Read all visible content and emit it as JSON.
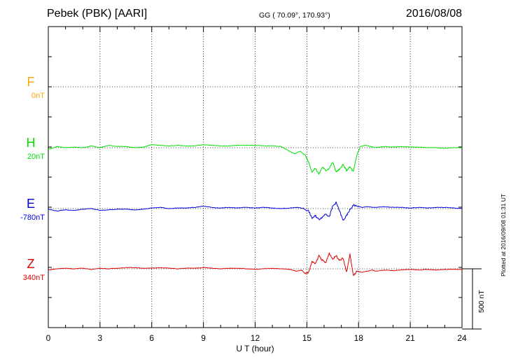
{
  "header": {
    "station": "Pebek (PBK)  [AARI]",
    "coords": "GG ( 70.09°, 170.93°)",
    "date": "2016/08/08"
  },
  "side_note": "Plotted at 2016/09/08 01:31 UT",
  "scale_bar_label": "500 nT",
  "chart_data": {
    "type": "line",
    "xlabel": "U T (hour)",
    "xlim": [
      0,
      24
    ],
    "xticks": [
      0,
      3,
      6,
      9,
      12,
      15,
      18,
      21,
      24
    ],
    "grid": true,
    "scale_bar_nT": 500,
    "components": [
      {
        "name": "F",
        "baseline": "0nT",
        "color": "#ffa500",
        "level": 0,
        "values": []
      },
      {
        "name": "H",
        "baseline": "20nT",
        "color": "#00e000",
        "level": 1,
        "x": [
          0,
          0.5,
          1,
          1.5,
          2,
          2.5,
          3,
          3.5,
          4,
          4.5,
          5,
          5.5,
          6,
          6.5,
          7,
          7.5,
          8,
          8.5,
          9,
          9.5,
          10,
          10.5,
          11,
          11.5,
          12,
          12.5,
          13,
          13.5,
          14,
          14.3,
          14.6,
          14.9,
          15.1,
          15.3,
          15.5,
          15.7,
          15.9,
          16.1,
          16.3,
          16.5,
          16.7,
          16.9,
          17.1,
          17.3,
          17.5,
          17.7,
          17.9,
          18.1,
          18.4,
          18.7,
          19,
          19.5,
          20,
          20.5,
          21,
          21.5,
          22,
          22.5,
          23,
          23.5,
          24
        ],
        "values": [
          -15,
          10,
          0,
          5,
          0,
          15,
          0,
          20,
          10,
          10,
          0,
          5,
          25,
          20,
          15,
          20,
          15,
          15,
          25,
          20,
          15,
          15,
          20,
          20,
          20,
          15,
          15,
          10,
          -30,
          -50,
          -30,
          -60,
          -120,
          -200,
          -170,
          -220,
          -160,
          -190,
          -170,
          -120,
          -200,
          -180,
          -140,
          -190,
          -160,
          -200,
          -60,
          10,
          20,
          10,
          0,
          10,
          5,
          10,
          5,
          5,
          0,
          0,
          -5,
          0,
          0
        ]
      },
      {
        "name": "E",
        "baseline": "-780nT",
        "color": "#0000dd",
        "level": 2,
        "x": [
          0,
          0.5,
          1,
          1.5,
          2,
          2.5,
          3,
          3.5,
          4,
          4.5,
          5,
          5.5,
          6,
          6.5,
          7,
          7.5,
          8,
          8.5,
          9,
          9.5,
          10,
          10.5,
          11,
          11.5,
          12,
          12.5,
          13,
          13.5,
          14,
          14.5,
          14.8,
          15.1,
          15.3,
          15.5,
          15.7,
          15.9,
          16.1,
          16.3,
          16.5,
          16.7,
          16.9,
          17.1,
          17.3,
          17.5,
          17.7,
          17.9,
          18.2,
          18.5,
          19,
          19.5,
          20,
          20.5,
          21,
          21.5,
          22,
          22.5,
          23,
          23.5,
          24
        ],
        "values": [
          -5,
          -20,
          -10,
          -15,
          -5,
          0,
          -15,
          -10,
          -5,
          -5,
          -10,
          -5,
          5,
          10,
          0,
          5,
          5,
          10,
          20,
          10,
          5,
          10,
          5,
          10,
          5,
          10,
          5,
          0,
          5,
          10,
          0,
          -20,
          -80,
          -60,
          -90,
          -70,
          -40,
          -70,
          20,
          50,
          -20,
          -100,
          -60,
          -10,
          30,
          20,
          10,
          15,
          10,
          15,
          10,
          10,
          5,
          10,
          5,
          10,
          10,
          5,
          0
        ]
      },
      {
        "name": "Z",
        "baseline": "340nT",
        "color": "#e00000",
        "level": 3,
        "x": [
          0,
          0.5,
          1,
          1.5,
          2,
          2.5,
          3,
          3.5,
          4,
          4.5,
          5,
          5.5,
          6,
          6.5,
          7,
          7.5,
          8,
          8.5,
          9,
          9.5,
          10,
          10.5,
          11,
          11.5,
          12,
          12.5,
          13,
          13.5,
          14,
          14.4,
          14.7,
          14.9,
          15.1,
          15.3,
          15.5,
          15.7,
          15.9,
          16.1,
          16.3,
          16.5,
          16.7,
          16.9,
          17.1,
          17.3,
          17.5,
          17.7,
          17.9,
          18.2,
          18.5,
          18.8,
          19,
          19.5,
          20,
          20.5,
          21,
          21.5,
          22,
          22.5,
          23,
          23.5,
          24
        ],
        "values": [
          -10,
          0,
          5,
          0,
          5,
          -5,
          5,
          0,
          5,
          10,
          10,
          5,
          5,
          10,
          5,
          0,
          5,
          5,
          10,
          5,
          0,
          5,
          5,
          0,
          -5,
          0,
          5,
          0,
          -5,
          -20,
          -10,
          -40,
          -30,
          60,
          40,
          110,
          70,
          50,
          130,
          80,
          110,
          70,
          90,
          -30,
          120,
          -60,
          -20,
          -30,
          -20,
          -10,
          -20,
          -10,
          -15,
          -10,
          -5,
          -10,
          -5,
          -10,
          -5,
          -5,
          -5
        ]
      }
    ]
  }
}
